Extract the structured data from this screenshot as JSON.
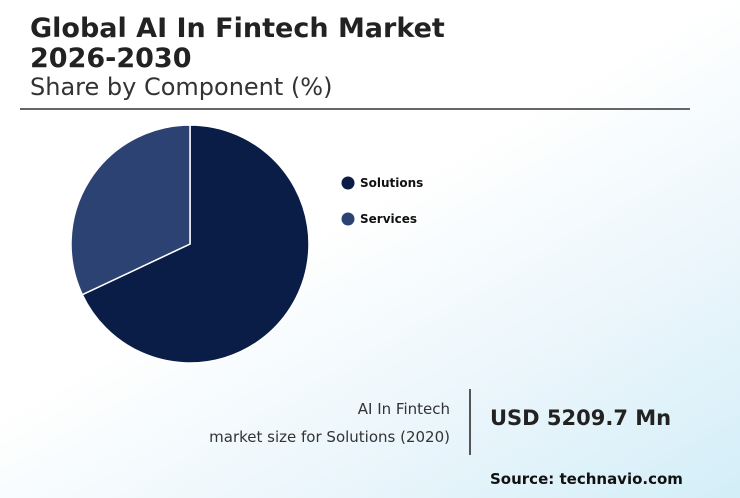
{
  "chart_data": {
    "type": "pie",
    "title": "Global AI In Fintech Market 2026-2030",
    "subtitle": "Share by Component (%)",
    "categories": [
      "Solutions",
      "Services"
    ],
    "values": [
      68,
      32
    ],
    "colors": [
      "#0a1d47",
      "#2c4273"
    ],
    "annotations": [
      "AI In Fintech",
      "market size for Solutions (2020)",
      "USD 5209.7 Mn",
      "Source: technavio.com"
    ]
  }
}
